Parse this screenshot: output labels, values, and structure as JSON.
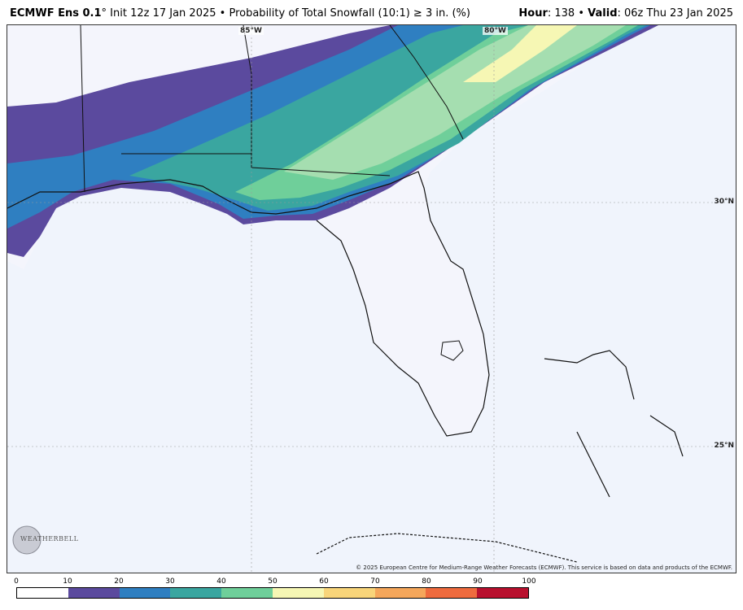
{
  "header": {
    "model": "ECMWF Ens 0.1",
    "degree": "°",
    "init": "Init 12z 17 Jan 2025",
    "bullet": "•",
    "product": "Probability of Total Snowfall (10:1)  ≥  3 in. (%)",
    "hour_label": "Hour",
    "hour_value": ": 138",
    "valid_label": "Valid",
    "valid_value": ": 06z Thu 23 Jan 2025"
  },
  "map": {
    "lon_labels": [
      "85°W",
      "80°W"
    ],
    "lat_labels": [
      "30°N",
      "25°N"
    ],
    "copyright": "© 2025 European Centre for Medium-Range Weather Forecasts (ECMWF). This service is based on data and products of the ECMWF.",
    "logo_text": "WEATHERBELL"
  },
  "colorbar": {
    "ticks": [
      "0",
      "10",
      "20",
      "30",
      "40",
      "50",
      "60",
      "70",
      "80",
      "90",
      "100"
    ],
    "colors": [
      "#ffffff",
      "#5b4a9e",
      "#2f7fc1",
      "#3aa6a0",
      "#6fcf9a",
      "#f6f7b4",
      "#f8d57a",
      "#f5a75b",
      "#ef6b3e",
      "#b8102e"
    ]
  }
}
